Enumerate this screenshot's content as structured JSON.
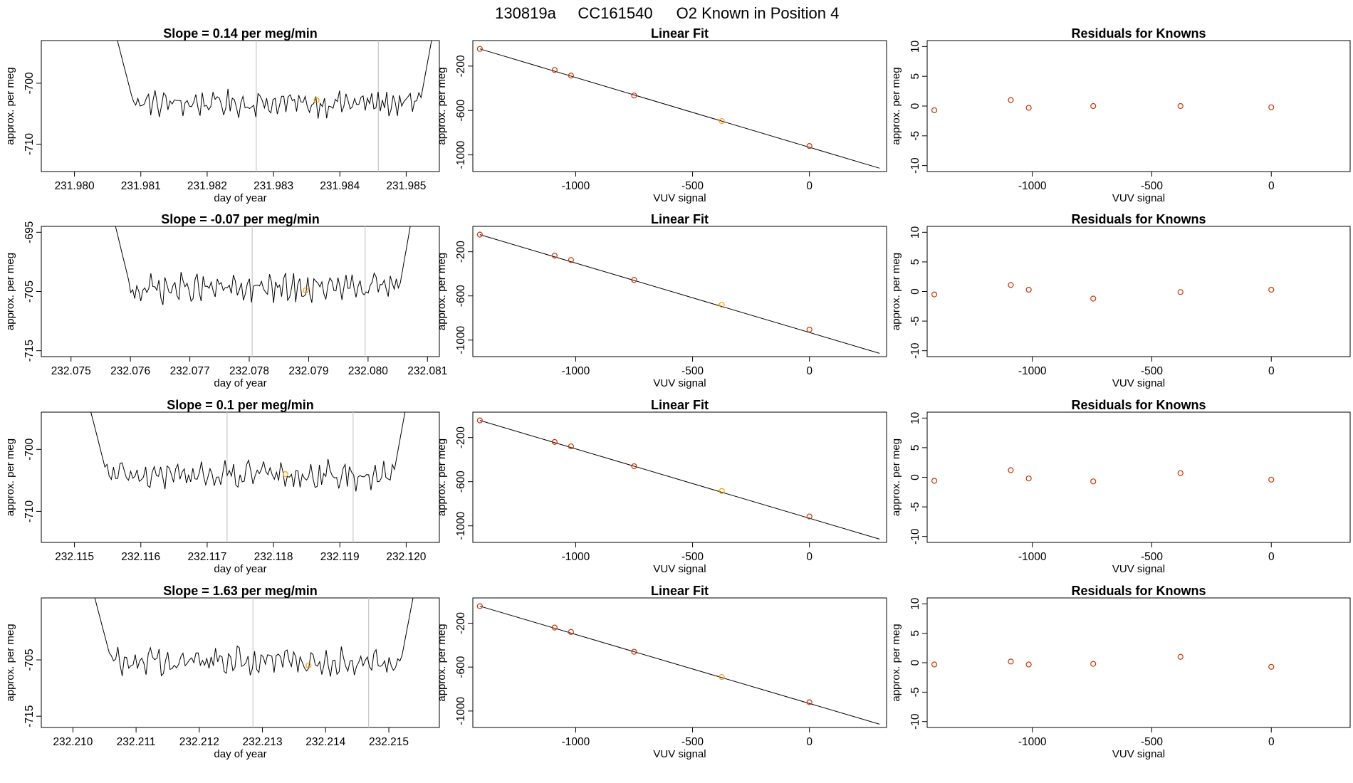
{
  "figure": {
    "title_parts": [
      "130819a",
      "CC161540",
      "O2 Known in Position  4"
    ]
  },
  "colors": {
    "trace": "#000000",
    "known_marker": "#cc3300",
    "sample_marker": "#ff9900",
    "divider": "#c8c8c8",
    "fit_line": "#000000"
  },
  "chart_data": [
    {
      "type": "line",
      "row": 1,
      "title": "Slope =  0.14  per meg/min",
      "xlabel": "day of year",
      "ylabel": "approx. per meg",
      "xlim": [
        231.9795,
        231.9855
      ],
      "ylim": [
        -714.5,
        -693
      ],
      "xticks": [
        231.98,
        231.981,
        231.982,
        231.983,
        231.984,
        231.985
      ],
      "xtick_labels": [
        "231.980",
        "231.981",
        "231.982",
        "231.983",
        "231.984",
        "231.985"
      ],
      "yticks": [
        -700,
        -710
      ],
      "ytick_labels": [
        "-700",
        "-710"
      ],
      "trace_start": 231.9806,
      "trace_end": 231.98545,
      "baseline": -703.3,
      "noise": 1.6,
      "dividers": [
        231.98274,
        231.98458
      ],
      "marker": {
        "x": 231.98365,
        "y": -702.8
      }
    },
    {
      "type": "scatter",
      "row": 1,
      "title": "Linear Fit",
      "xlabel": "VUV signal",
      "ylabel": "approx. per meg",
      "xlim": [
        -1440,
        330
      ],
      "ylim": [
        -1150,
        30
      ],
      "xticks": [
        -1000,
        -500,
        0
      ],
      "xtick_labels": [
        "-1000",
        "-500",
        "0"
      ],
      "yticks": [
        -200,
        -600,
        -1000
      ],
      "ytick_labels": [
        "-200",
        "-600",
        "-1000"
      ],
      "fit": {
        "x": [
          -1410,
          300
        ],
        "y": [
          -45,
          -1120
        ]
      },
      "knowns": {
        "x": [
          -1410,
          -1090,
          -1020,
          -750,
          -375,
          0
        ],
        "y": [
          -45,
          -235,
          -285,
          -465,
          -695,
          -920
        ]
      },
      "sample_index": 4
    },
    {
      "type": "scatter",
      "row": 1,
      "title": "Residuals for Knowns",
      "xlabel": "VUV signal",
      "ylabel": "approx. per meg",
      "xlim": [
        -1440,
        330
      ],
      "ylim": [
        -11,
        11
      ],
      "xticks": [
        -1000,
        -500,
        0
      ],
      "xtick_labels": [
        "-1000",
        "-500",
        "0"
      ],
      "yticks": [
        10,
        5,
        0,
        -5,
        -10
      ],
      "ytick_labels": [
        "10",
        "5",
        "0",
        "-5",
        "-10"
      ],
      "x": [
        -1410,
        -1090,
        -1015,
        -745,
        -380,
        0
      ],
      "y": [
        -0.7,
        1.0,
        -0.3,
        0.0,
        0.0,
        -0.2
      ]
    },
    {
      "type": "line",
      "row": 2,
      "title": "Slope =  -0.07  per meg/min",
      "xlabel": "day of year",
      "ylabel": "approx. per meg",
      "xlim": [
        232.0745,
        232.0812
      ],
      "ylim": [
        -716,
        -694
      ],
      "xticks": [
        232.075,
        232.076,
        232.077,
        232.078,
        232.079,
        232.08,
        232.081
      ],
      "xtick_labels": [
        "232.075",
        "232.076",
        "232.077",
        "232.078",
        "232.079",
        "232.080",
        "232.081"
      ],
      "yticks": [
        -695,
        -705,
        -715
      ],
      "ytick_labels": [
        "-695",
        "-705",
        "-715"
      ],
      "trace_start": 232.0757,
      "trace_end": 232.08078,
      "baseline": -704.5,
      "noise": 1.8,
      "dividers": [
        232.07805,
        232.07995
      ],
      "marker": {
        "x": 232.07895,
        "y": -704.8
      }
    },
    {
      "type": "scatter",
      "row": 2,
      "title": "Linear Fit",
      "xlabel": "VUV signal",
      "ylabel": "approx. per meg",
      "xlim": [
        -1440,
        330
      ],
      "ylim": [
        -1150,
        30
      ],
      "xticks": [
        -1000,
        -500,
        0
      ],
      "xtick_labels": [
        "-1000",
        "-500",
        "0"
      ],
      "yticks": [
        -200,
        -600,
        -1000
      ],
      "ytick_labels": [
        "-200",
        "-600",
        "-1000"
      ],
      "fit": {
        "x": [
          -1410,
          300
        ],
        "y": [
          -45,
          -1120
        ]
      },
      "knowns": {
        "x": [
          -1410,
          -1090,
          -1020,
          -750,
          -375,
          0
        ],
        "y": [
          -45,
          -235,
          -275,
          -455,
          -680,
          -905
        ]
      },
      "sample_index": 4
    },
    {
      "type": "scatter",
      "row": 2,
      "title": "Residuals for Knowns",
      "xlabel": "VUV signal",
      "ylabel": "approx. per meg",
      "xlim": [
        -1440,
        330
      ],
      "ylim": [
        -11,
        11
      ],
      "xticks": [
        -1000,
        -500,
        0
      ],
      "xtick_labels": [
        "-1000",
        "-500",
        "0"
      ],
      "yticks": [
        10,
        5,
        0,
        -5,
        -10
      ],
      "ytick_labels": [
        "10",
        "5",
        "0",
        "-5",
        "-10"
      ],
      "x": [
        -1410,
        -1090,
        -1015,
        -745,
        -380,
        0
      ],
      "y": [
        -0.5,
        1.1,
        0.3,
        -1.2,
        -0.1,
        0.3
      ]
    },
    {
      "type": "line",
      "row": 3,
      "title": "Slope =  0.1  per meg/min",
      "xlabel": "day of year",
      "ylabel": "approx. per meg",
      "xlim": [
        232.1145,
        232.1205
      ],
      "ylim": [
        -715,
        -694
      ],
      "xticks": [
        232.115,
        232.116,
        232.117,
        232.118,
        232.119,
        232.12
      ],
      "xtick_labels": [
        "232.115",
        "232.116",
        "232.117",
        "232.118",
        "232.119",
        "232.120"
      ],
      "trace_start": 232.1152,
      "trace_end": 232.12005,
      "baseline": -704.2,
      "noise": 1.7,
      "yticks": [
        -700,
        -710
      ],
      "ytick_labels": [
        "-700",
        "-710"
      ],
      "dividers": [
        232.1173,
        232.1192
      ],
      "marker": {
        "x": 232.11818,
        "y": -704.0
      }
    },
    {
      "type": "scatter",
      "row": 3,
      "title": "Linear Fit",
      "xlabel": "VUV signal",
      "ylabel": "approx. per meg",
      "xlim": [
        -1440,
        330
      ],
      "ylim": [
        -1150,
        30
      ],
      "xticks": [
        -1000,
        -500,
        0
      ],
      "xtick_labels": [
        "-1000",
        "-500",
        "0"
      ],
      "yticks": [
        -200,
        -600,
        -1000
      ],
      "ytick_labels": [
        "-200",
        "-600",
        "-1000"
      ],
      "fit": {
        "x": [
          -1410,
          300
        ],
        "y": [
          -45,
          -1120
        ]
      },
      "knowns": {
        "x": [
          -1410,
          -1090,
          -1020,
          -750,
          -375,
          0
        ],
        "y": [
          -45,
          -240,
          -280,
          -460,
          -685,
          -915
        ]
      },
      "sample_index": 4
    },
    {
      "type": "scatter",
      "row": 3,
      "title": "Residuals for Knowns",
      "xlabel": "VUV signal",
      "ylabel": "approx. per meg",
      "xlim": [
        -1440,
        330
      ],
      "ylim": [
        -11,
        11
      ],
      "xticks": [
        -1000,
        -500,
        0
      ],
      "xtick_labels": [
        "-1000",
        "-500",
        "0"
      ],
      "yticks": [
        10,
        5,
        0,
        -5,
        -10
      ],
      "ytick_labels": [
        "10",
        "5",
        "0",
        "-5",
        "-10"
      ],
      "x": [
        -1410,
        -1090,
        -1015,
        -745,
        -380,
        0
      ],
      "y": [
        -0.6,
        1.2,
        -0.2,
        -0.7,
        0.7,
        -0.4
      ]
    },
    {
      "type": "line",
      "row": 4,
      "title": "Slope =  1.63  per meg/min",
      "xlabel": "day of year",
      "ylabel": "approx. per meg",
      "xlim": [
        232.2095,
        232.2158
      ],
      "ylim": [
        -717,
        -694
      ],
      "xticks": [
        232.21,
        232.211,
        232.212,
        232.213,
        232.214,
        232.215
      ],
      "xtick_labels": [
        "232.210",
        "232.211",
        "232.212",
        "232.213",
        "232.214",
        "232.215"
      ],
      "yticks": [
        -705,
        -715
      ],
      "ytick_labels": [
        "-705",
        "-715"
      ],
      "trace_start": 232.2103,
      "trace_end": 232.21545,
      "baseline": -705.2,
      "noise": 1.9,
      "dividers": [
        232.21285,
        232.21468
      ],
      "marker": {
        "x": 232.21373,
        "y": -706.0
      }
    },
    {
      "type": "scatter",
      "row": 4,
      "title": "Linear Fit",
      "xlabel": "VUV signal",
      "ylabel": "approx. per meg",
      "xlim": [
        -1440,
        330
      ],
      "ylim": [
        -1150,
        30
      ],
      "xticks": [
        -1000,
        -500,
        0
      ],
      "xtick_labels": [
        "-1000",
        "-500",
        "0"
      ],
      "yticks": [
        -200,
        -600,
        -1000
      ],
      "ytick_labels": [
        "-200",
        "-600",
        "-1000"
      ],
      "fit": {
        "x": [
          -1410,
          300
        ],
        "y": [
          -45,
          -1120
        ]
      },
      "knowns": {
        "x": [
          -1410,
          -1090,
          -1020,
          -750,
          -375,
          0
        ],
        "y": [
          -45,
          -240,
          -280,
          -460,
          -690,
          -920
        ]
      },
      "sample_index": 4
    },
    {
      "type": "scatter",
      "row": 4,
      "title": "Residuals for Knowns",
      "xlabel": "VUV signal",
      "ylabel": "approx. per meg",
      "xlim": [
        -1440,
        330
      ],
      "ylim": [
        -11,
        11
      ],
      "xticks": [
        -1000,
        -500,
        0
      ],
      "xtick_labels": [
        "-1000",
        "-500",
        "0"
      ],
      "yticks": [
        10,
        5,
        0,
        -5,
        -10
      ],
      "ytick_labels": [
        "10",
        "5",
        "0",
        "-5",
        "-10"
      ],
      "x": [
        -1410,
        -1090,
        -1015,
        -745,
        -380,
        0
      ],
      "y": [
        -0.3,
        0.2,
        -0.3,
        -0.2,
        1.0,
        -0.7
      ]
    }
  ]
}
